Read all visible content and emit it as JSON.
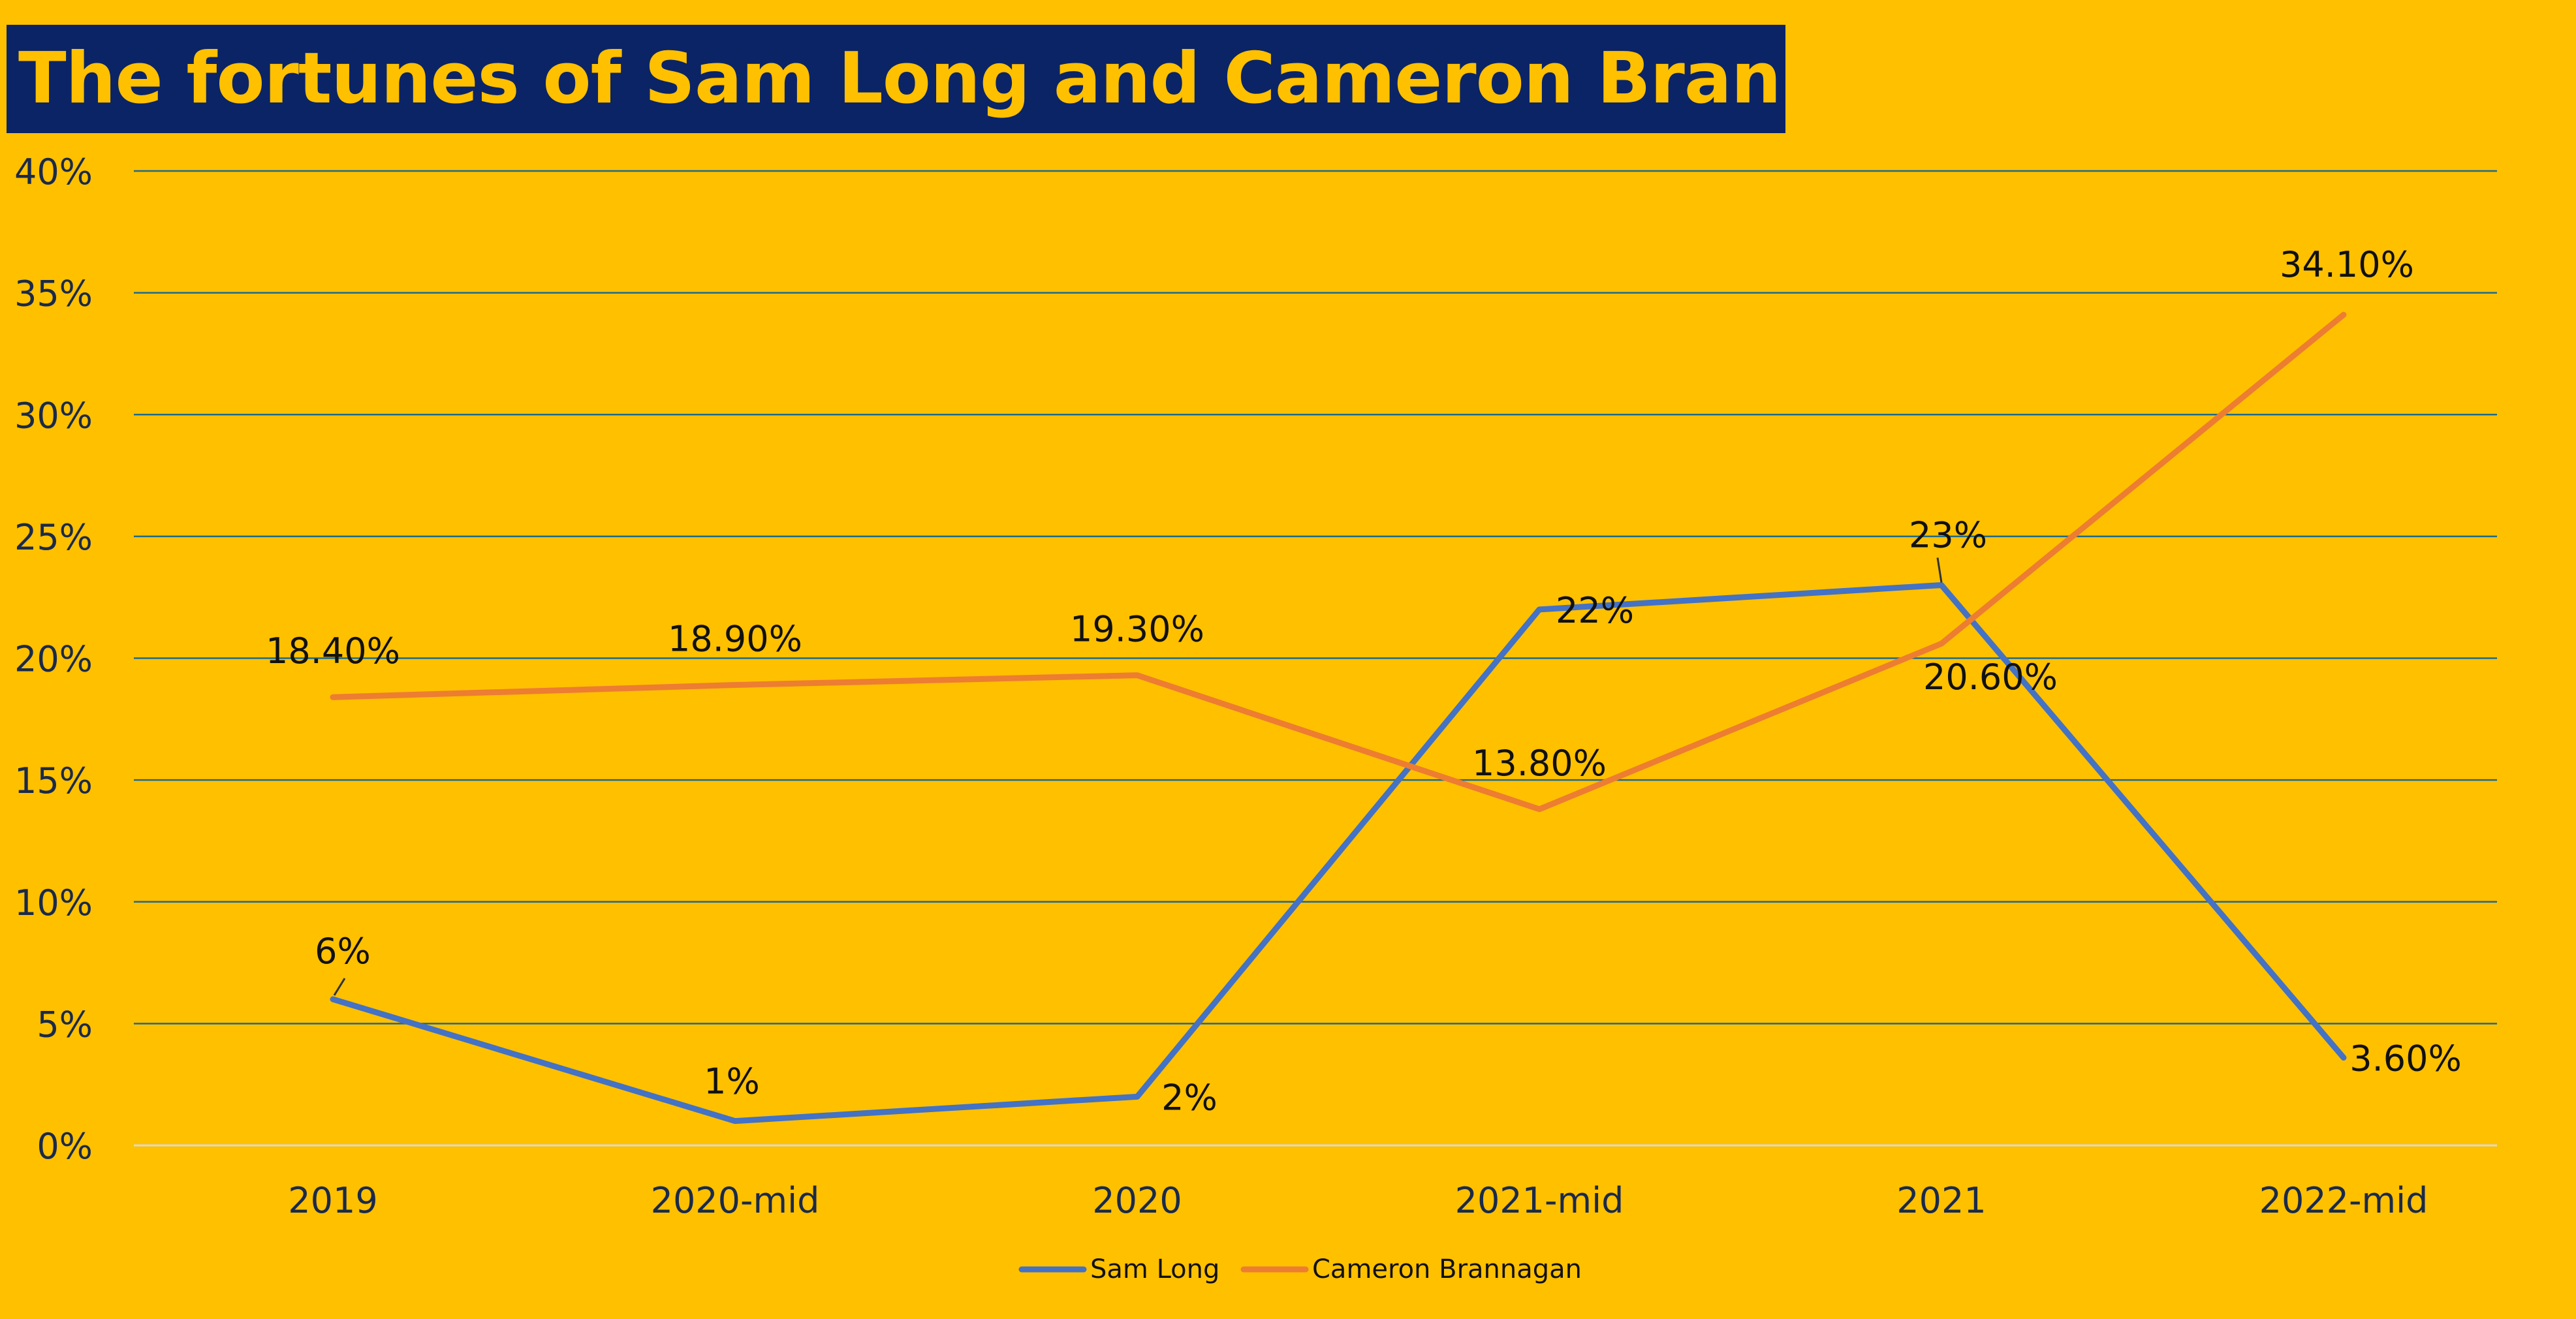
{
  "chart_data": {
    "type": "line",
    "title": "The fortunes of Sam Long and Cameron Brannagan",
    "categories": [
      "2019",
      "2020-mid",
      "2020",
      "2021-mid",
      "2021",
      "2022-mid"
    ],
    "ylim": [
      0,
      40
    ],
    "yticks": [
      0,
      5,
      10,
      15,
      20,
      25,
      30,
      35,
      40
    ],
    "ytick_labels": [
      "0%",
      "5%",
      "10%",
      "15%",
      "20%",
      "25%",
      "30%",
      "35%",
      "40%"
    ],
    "grid": true,
    "legend_position": "bottom",
    "series": [
      {
        "name": "Sam Long",
        "color": "#4472c4",
        "values": [
          6,
          1,
          2,
          22,
          23,
          3.6
        ],
        "labels": [
          "6%",
          "1%",
          "2%",
          "22%",
          "23%",
          "3.60%"
        ]
      },
      {
        "name": "Cameron Brannagan",
        "color": "#ed7d31",
        "values": [
          18.4,
          18.9,
          19.3,
          13.8,
          20.6,
          34.1
        ],
        "labels": [
          "18.40%",
          "18.90%",
          "19.30%",
          "13.80%",
          "20.60%",
          "34.10%"
        ]
      }
    ]
  },
  "colors": {
    "background": "#ffc000",
    "title_background": "#0b2466",
    "title_text": "#ffc000",
    "gridline": "#1f6a8a",
    "axis_text": "#1a2a4a"
  }
}
